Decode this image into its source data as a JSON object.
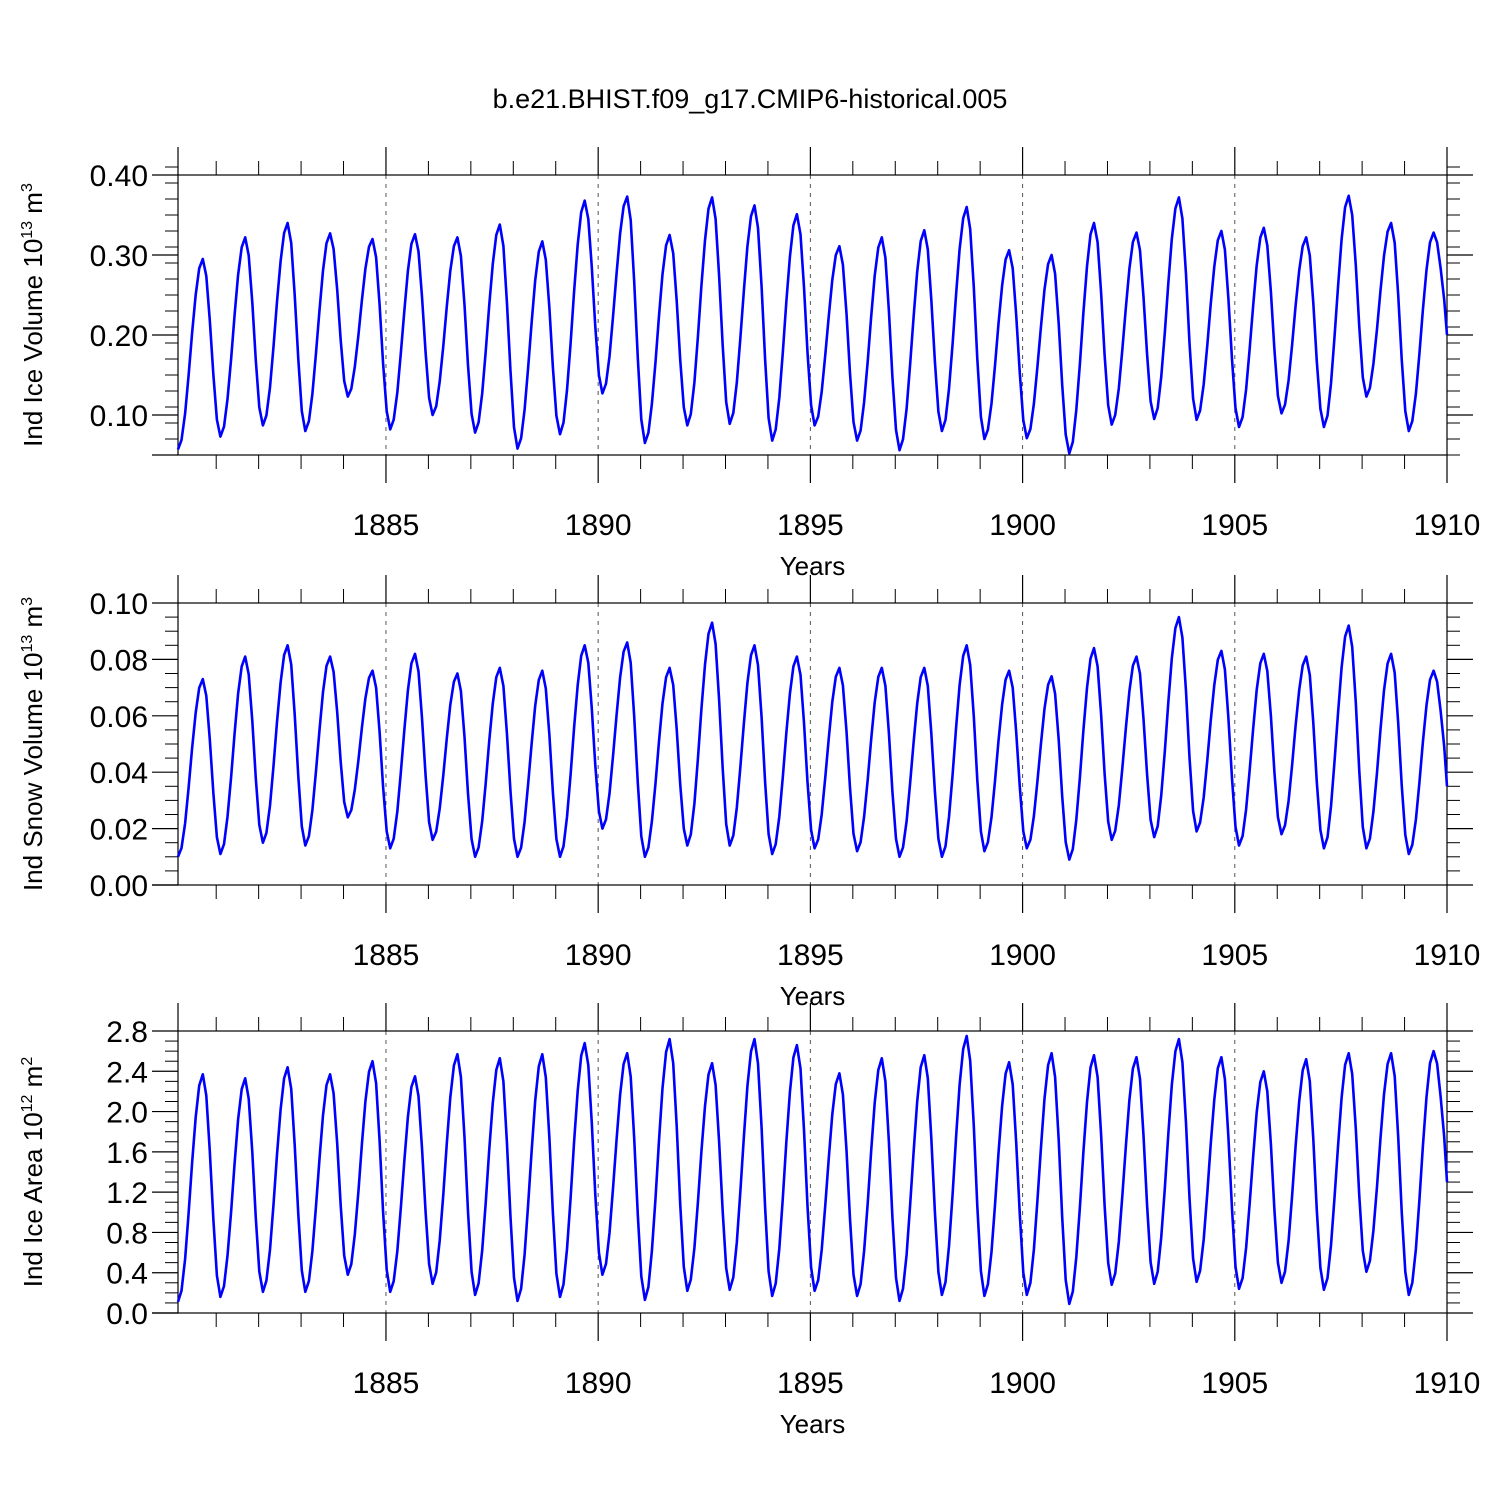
{
  "title": "b.e21.BHIST.f09_g17.CMIP6-historical.005",
  "line_color": "#0000ff",
  "chart_data": [
    {
      "type": "line",
      "ylabel_main": "Ind Ice Volume 10",
      "ylabel_exp": "13",
      "ylabel_unit": " m",
      "ylabel_unit_exp": "3",
      "xlabel": "Years",
      "ylim": [
        0.05,
        0.4
      ],
      "xlim": [
        1880.1,
        1910.0
      ],
      "yticks": [
        0.1,
        0.2,
        0.3,
        0.4
      ],
      "ytick_labels": [
        "0.10",
        "0.20",
        "0.30",
        "0.40"
      ],
      "yminor_step": 0.02,
      "xticks": [
        1885,
        1890,
        1895,
        1900,
        1905,
        1910
      ],
      "xtick_labels": [
        "1885",
        "1890",
        "1895",
        "1900",
        "1905",
        "1910"
      ],
      "x_start": 1880.1,
      "dx": 0.125,
      "min_offset": 0.2,
      "rise_months": 7,
      "peaks": [
        0.295,
        0.322,
        0.34,
        0.327,
        0.32,
        0.326,
        0.322,
        0.338,
        0.317,
        0.368,
        0.373,
        0.325,
        0.372,
        0.362,
        0.351,
        0.311,
        0.322,
        0.331,
        0.36,
        0.306,
        0.3,
        0.34,
        0.328,
        0.372,
        0.33,
        0.334,
        0.322,
        0.374,
        0.34,
        0.328
      ],
      "mins": [
        0.057,
        0.073,
        0.087,
        0.08,
        0.123,
        0.082,
        0.1,
        0.078,
        0.058,
        0.076,
        0.127,
        0.065,
        0.087,
        0.089,
        0.068,
        0.087,
        0.068,
        0.056,
        0.08,
        0.07,
        0.071,
        0.052,
        0.088,
        0.095,
        0.094,
        0.085,
        0.102,
        0.085,
        0.123,
        0.08,
        0.2
      ]
    },
    {
      "type": "line",
      "ylabel_main": "Ind Snow Volume 10",
      "ylabel_exp": "13",
      "ylabel_unit": " m",
      "ylabel_unit_exp": "3",
      "xlabel": "Years",
      "ylim": [
        0.0,
        0.1
      ],
      "xlim": [
        1880.1,
        1910.0
      ],
      "yticks": [
        0.0,
        0.02,
        0.04,
        0.06,
        0.08,
        0.1
      ],
      "ytick_labels": [
        "0.00",
        "0.02",
        "0.04",
        "0.06",
        "0.08",
        "0.10"
      ],
      "yminor_step": 0.005,
      "xticks": [
        1885,
        1890,
        1895,
        1900,
        1905,
        1910
      ],
      "xtick_labels": [
        "1885",
        "1890",
        "1895",
        "1900",
        "1905",
        "1910"
      ],
      "x_start": 1880.1,
      "dx": 0.125,
      "min_offset": 0.2,
      "rise_months": 7,
      "peaks": [
        0.073,
        0.081,
        0.085,
        0.081,
        0.076,
        0.082,
        0.075,
        0.077,
        0.076,
        0.085,
        0.086,
        0.077,
        0.093,
        0.085,
        0.081,
        0.077,
        0.077,
        0.077,
        0.085,
        0.076,
        0.074,
        0.084,
        0.081,
        0.095,
        0.083,
        0.082,
        0.081,
        0.092,
        0.082,
        0.076
      ],
      "mins": [
        0.01,
        0.011,
        0.015,
        0.014,
        0.024,
        0.013,
        0.016,
        0.01,
        0.01,
        0.01,
        0.02,
        0.01,
        0.014,
        0.014,
        0.011,
        0.013,
        0.012,
        0.01,
        0.01,
        0.012,
        0.013,
        0.009,
        0.016,
        0.017,
        0.019,
        0.014,
        0.018,
        0.013,
        0.013,
        0.011,
        0.035
      ]
    },
    {
      "type": "line",
      "ylabel_main": "Ind Ice Area 10",
      "ylabel_exp": "12",
      "ylabel_unit": " m",
      "ylabel_unit_exp": "2",
      "xlabel": "Years",
      "ylim": [
        0.0,
        2.8
      ],
      "xlim": [
        1880.1,
        1910.0
      ],
      "yticks": [
        0.0,
        0.4,
        0.8,
        1.2,
        1.6,
        2.0,
        2.4,
        2.8
      ],
      "ytick_labels": [
        "0.0",
        "0.4",
        "0.8",
        "1.2",
        "1.6",
        "2.0",
        "2.4",
        "2.8"
      ],
      "yminor_step": 0.1,
      "xticks": [
        1885,
        1890,
        1895,
        1900,
        1905,
        1910
      ],
      "xtick_labels": [
        "1885",
        "1890",
        "1895",
        "1900",
        "1905",
        "1910"
      ],
      "x_start": 1880.1,
      "dx": 0.125,
      "min_offset": 0.2,
      "rise_months": 7,
      "peaks": [
        2.37,
        2.33,
        2.44,
        2.37,
        2.5,
        2.35,
        2.57,
        2.53,
        2.57,
        2.68,
        2.58,
        2.72,
        2.48,
        2.72,
        2.66,
        2.38,
        2.53,
        2.56,
        2.75,
        2.49,
        2.58,
        2.56,
        2.54,
        2.72,
        2.54,
        2.4,
        2.52,
        2.58,
        2.58,
        2.6
      ],
      "mins": [
        0.11,
        0.16,
        0.21,
        0.21,
        0.38,
        0.21,
        0.29,
        0.18,
        0.12,
        0.16,
        0.38,
        0.13,
        0.22,
        0.23,
        0.17,
        0.22,
        0.17,
        0.12,
        0.18,
        0.17,
        0.18,
        0.09,
        0.28,
        0.29,
        0.31,
        0.24,
        0.3,
        0.23,
        0.41,
        0.18,
        1.3
      ]
    }
  ]
}
